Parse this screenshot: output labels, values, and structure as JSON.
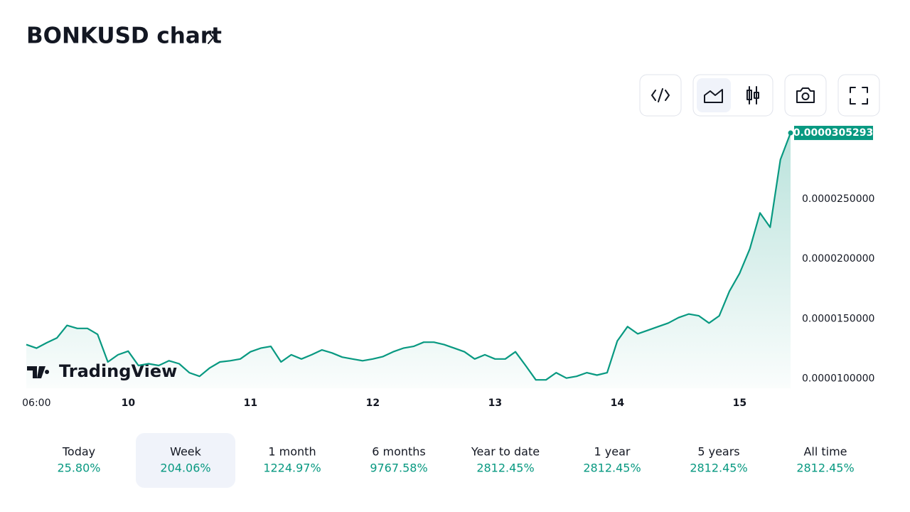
{
  "header": {
    "title": "BONKUSD chart"
  },
  "chart_data": {
    "type": "line",
    "watermark": "TradingView",
    "color": "#089981",
    "categories": [
      null,
      "06:00",
      null,
      null,
      null,
      null,
      null,
      null,
      null,
      null,
      "10",
      null,
      null,
      null,
      null,
      null,
      null,
      null,
      null,
      null,
      null,
      null,
      "11",
      null,
      null,
      null,
      null,
      null,
      null,
      null,
      null,
      null,
      null,
      null,
      "12",
      null,
      null,
      null,
      null,
      null,
      null,
      null,
      null,
      null,
      null,
      null,
      "13",
      null,
      null,
      null,
      null,
      null,
      null,
      null,
      null,
      null,
      null,
      null,
      "14",
      null,
      null,
      null,
      null,
      null,
      null,
      null,
      null,
      null,
      null,
      null,
      "15",
      null,
      null,
      null,
      null,
      null
    ],
    "values": [
      1.285e-05,
      1.255e-05,
      1.3e-05,
      1.34e-05,
      1.445e-05,
      1.42e-05,
      1.42e-05,
      1.37e-05,
      1.14e-05,
      1.2e-05,
      1.23e-05,
      1.11e-05,
      1.125e-05,
      1.11e-05,
      1.15e-05,
      1.125e-05,
      1.05e-05,
      1.02e-05,
      1.09e-05,
      1.14e-05,
      1.15e-05,
      1.165e-05,
      1.225e-05,
      1.255e-05,
      1.27e-05,
      1.14e-05,
      1.2e-05,
      1.165e-05,
      1.2e-05,
      1.24e-05,
      1.215e-05,
      1.18e-05,
      1.165e-05,
      1.15e-05,
      1.165e-05,
      1.185e-05,
      1.225e-05,
      1.255e-05,
      1.27e-05,
      1.305e-05,
      1.305e-05,
      1.285e-05,
      1.255e-05,
      1.225e-05,
      1.165e-05,
      1.2e-05,
      1.165e-05,
      1.165e-05,
      1.225e-05,
      1.11e-05,
      9.9e-06,
      9.9e-06,
      1.05e-05,
      1.005e-05,
      1.02e-05,
      1.05e-05,
      1.03e-05,
      1.05e-05,
      1.315e-05,
      1.435e-05,
      1.375e-05,
      1.405e-05,
      1.435e-05,
      1.465e-05,
      1.51e-05,
      1.54e-05,
      1.525e-05,
      1.465e-05,
      1.525e-05,
      1.73e-05,
      1.88e-05,
      2.085e-05,
      2.385e-05,
      2.265e-05,
      2.83e-05,
      3.05293e-05
    ],
    "value_labels": [
      null,
      null,
      null,
      null,
      null,
      null,
      null,
      null,
      null,
      null,
      null,
      null,
      null,
      null,
      null,
      null,
      null,
      null,
      null,
      null,
      null,
      null,
      null,
      null,
      null,
      null,
      null,
      null,
      null,
      null,
      null,
      null,
      null,
      null,
      null,
      null,
      null,
      null,
      null,
      null,
      null,
      null,
      null,
      null,
      null,
      null,
      null,
      null,
      null,
      null,
      null,
      null,
      null,
      null,
      null,
      null,
      null,
      null,
      null,
      null,
      null,
      null,
      null,
      null,
      null,
      null,
      null,
      null,
      null,
      null,
      null,
      null,
      null,
      null,
      null,
      "0.0000305293"
    ],
    "ylim": [
      9.2e-06,
      3.1e-05
    ],
    "yticks": [
      {
        "value": 1e-05,
        "label": "0.0000100000"
      },
      {
        "value": 1.5e-05,
        "label": "0.0000150000"
      },
      {
        "value": 2e-05,
        "label": "0.0000200000"
      },
      {
        "value": 2.5e-05,
        "label": "0.0000250000"
      }
    ]
  },
  "periods": {
    "selected": 1,
    "items": [
      {
        "label": "Today",
        "change": "25.80%"
      },
      {
        "label": "Week",
        "change": "204.06%"
      },
      {
        "label": "1 month",
        "change": "1224.97%"
      },
      {
        "label": "6 months",
        "change": "9767.58%"
      },
      {
        "label": "Year to date",
        "change": "2812.45%"
      },
      {
        "label": "1 year",
        "change": "2812.45%"
      },
      {
        "label": "5 years",
        "change": "2812.45%"
      },
      {
        "label": "All time",
        "change": "2812.45%"
      }
    ]
  }
}
